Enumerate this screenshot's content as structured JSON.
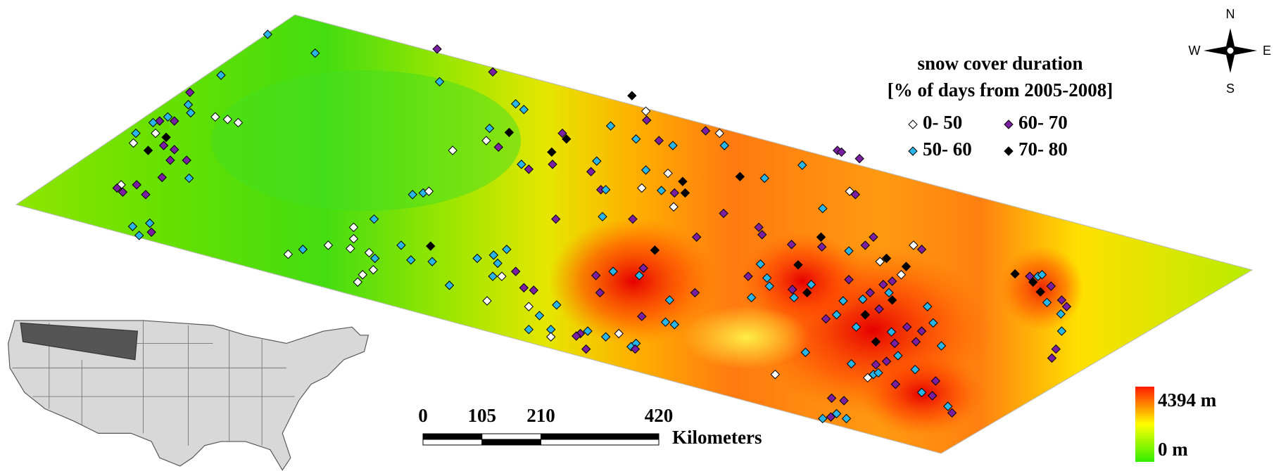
{
  "legend": {
    "title": [
      "snow cover duration",
      "[% of days from 2005-2008]"
    ],
    "items": [
      {
        "label": "0- 50",
        "color": "#ffffff"
      },
      {
        "label": "60- 70",
        "color": "#7a1fa2"
      },
      {
        "label": "50- 60",
        "color": "#29b6e6"
      },
      {
        "label": "70- 80",
        "color": "#000000"
      }
    ]
  },
  "scale_bar": {
    "ticks": [
      0,
      105,
      210,
      420
    ],
    "unit": "Kilometers"
  },
  "elevation": {
    "max_label": "4394 m",
    "min_label": "0 m"
  },
  "compass": {
    "north": "N",
    "south": "S",
    "west": "W",
    "east": "E"
  }
}
